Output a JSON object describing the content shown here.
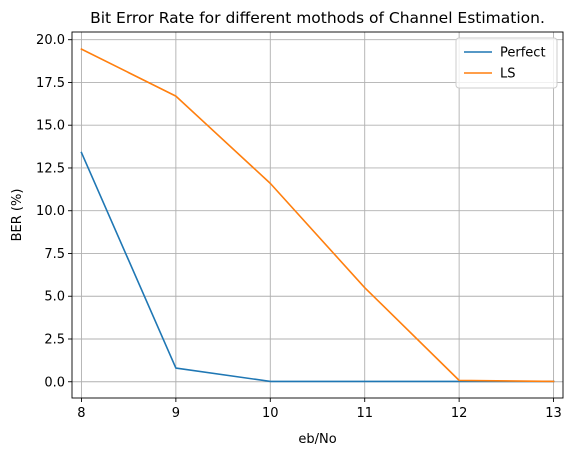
{
  "chart_data": {
    "type": "line",
    "title": "Bit Error Rate for different mothods of Channel Estimation.",
    "xlabel": "eb/No",
    "ylabel": "BER (%)",
    "x": [
      8,
      9,
      10,
      11,
      12,
      13
    ],
    "xlim": [
      7.9,
      13.1
    ],
    "ylim": [
      -0.95,
      20.45
    ],
    "x_ticks": [
      "8",
      "9",
      "10",
      "11",
      "12",
      "13"
    ],
    "y_ticks": [
      "0.0",
      "2.5",
      "5.0",
      "7.5",
      "10.0",
      "12.5",
      "15.0",
      "17.5",
      "20.0"
    ],
    "grid": true,
    "legend_position": "top-right",
    "series": [
      {
        "name": "Perfect",
        "color": "#1f77b4",
        "values": [
          13.4,
          0.8,
          0.02,
          0.02,
          0.02,
          0.02
        ]
      },
      {
        "name": "LS",
        "color": "#ff7f0e",
        "values": [
          19.45,
          16.7,
          11.6,
          5.5,
          0.08,
          0.02
        ]
      }
    ]
  }
}
